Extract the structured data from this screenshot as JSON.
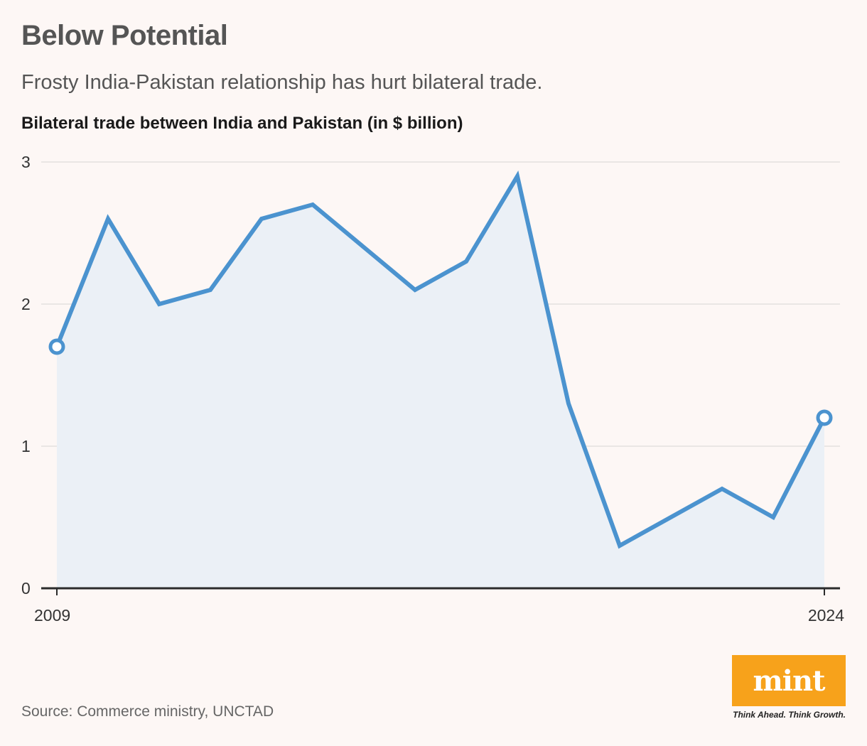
{
  "header": {
    "title": "Below Potential",
    "subtitle": "Frosty India-Pakistan relationship has hurt bilateral trade."
  },
  "footer": {
    "source": "Source: Commerce ministry, UNCTAD",
    "logo_text": "mint",
    "tagline": "Think Ahead. Think Growth."
  },
  "colors": {
    "line": "#4b93cf",
    "area": "#ebf0f6",
    "grid": "#e3e0df",
    "axis": "#2b2b2b",
    "accent": "#f7a21b"
  },
  "chart_data": {
    "type": "area",
    "title": "Bilateral trade between India and Pakistan (in $ billion)",
    "xlabel": "",
    "ylabel": "",
    "x": [
      2009,
      2010,
      2011,
      2012,
      2013,
      2014,
      2015,
      2016,
      2017,
      2018,
      2019,
      2020,
      2021,
      2022,
      2023,
      2024
    ],
    "series": [
      {
        "values": [
          1.7,
          2.6,
          2.0,
          2.1,
          2.6,
          2.7,
          2.4,
          2.1,
          2.3,
          2.9,
          1.3,
          0.3,
          0.5,
          0.7,
          0.5,
          1.2
        ]
      }
    ],
    "ylim": [
      0,
      3
    ],
    "yticks": [
      0,
      1,
      2,
      3
    ],
    "xtick_labels": [
      "2009",
      "2024"
    ],
    "grid": true,
    "markers": "endpoints"
  }
}
